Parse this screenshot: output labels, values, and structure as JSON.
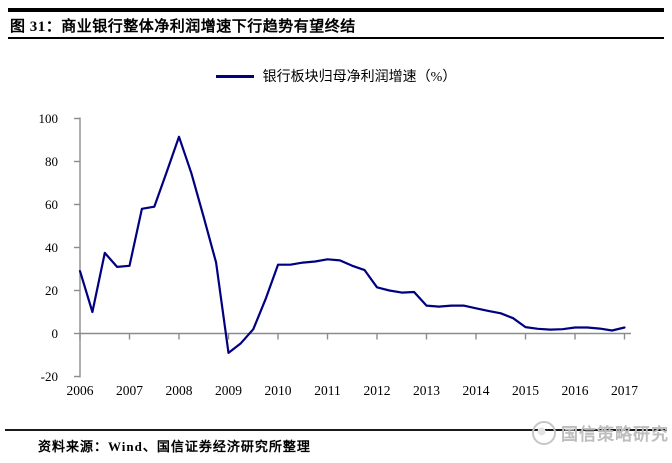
{
  "header": {
    "title": "图 31：商业银行整体净利润增速下行趋势有望终结"
  },
  "legend": {
    "label": "银行板块归母净利润增速（%）"
  },
  "chart_data": {
    "type": "line",
    "title": "银行板块归母净利润增速（%）",
    "xlabel": "",
    "ylabel": "",
    "ylim": [
      -20,
      100
    ],
    "y_ticks": [
      100,
      80,
      60,
      40,
      20,
      0,
      -20
    ],
    "x_ticks": [
      2006,
      2007,
      2008,
      2009,
      2010,
      2011,
      2012,
      2013,
      2014,
      2015,
      2016,
      2017
    ],
    "grid": "zero-baseline-only",
    "legend_position": "top-center",
    "line_color": "#000080",
    "axis_color": "#8c8c8c",
    "series": [
      {
        "name": "银行板块归母净利润增速（%）",
        "x": [
          2006.0,
          2006.25,
          2006.5,
          2006.75,
          2007.0,
          2007.25,
          2007.5,
          2007.75,
          2008.0,
          2008.25,
          2008.5,
          2008.75,
          2009.0,
          2009.25,
          2009.5,
          2009.75,
          2010.0,
          2010.25,
          2010.5,
          2010.75,
          2011.0,
          2011.25,
          2011.5,
          2011.75,
          2012.0,
          2012.25,
          2012.5,
          2012.75,
          2013.0,
          2013.25,
          2013.5,
          2013.75,
          2014.0,
          2014.25,
          2014.5,
          2014.75,
          2015.0,
          2015.25,
          2015.5,
          2015.75,
          2016.0,
          2016.25,
          2016.5,
          2016.75,
          2017.0
        ],
        "values": [
          29,
          10,
          37.5,
          31,
          31.5,
          58,
          59,
          75,
          91.5,
          74.5,
          54,
          33,
          -9,
          -4.5,
          2,
          16,
          32,
          32,
          33,
          33.5,
          34.5,
          34,
          31.5,
          29.5,
          21.5,
          20,
          19,
          19.3,
          13,
          12.5,
          13,
          13,
          11.7,
          10.5,
          9.4,
          7.1,
          3,
          2.2,
          1.8,
          2,
          2.8,
          2.8,
          2.3,
          1.4,
          2.8
        ]
      }
    ]
  },
  "footer": {
    "source": "资料来源：Wind、国信证券经济研究所整理",
    "watermark": "国信策略研究"
  }
}
